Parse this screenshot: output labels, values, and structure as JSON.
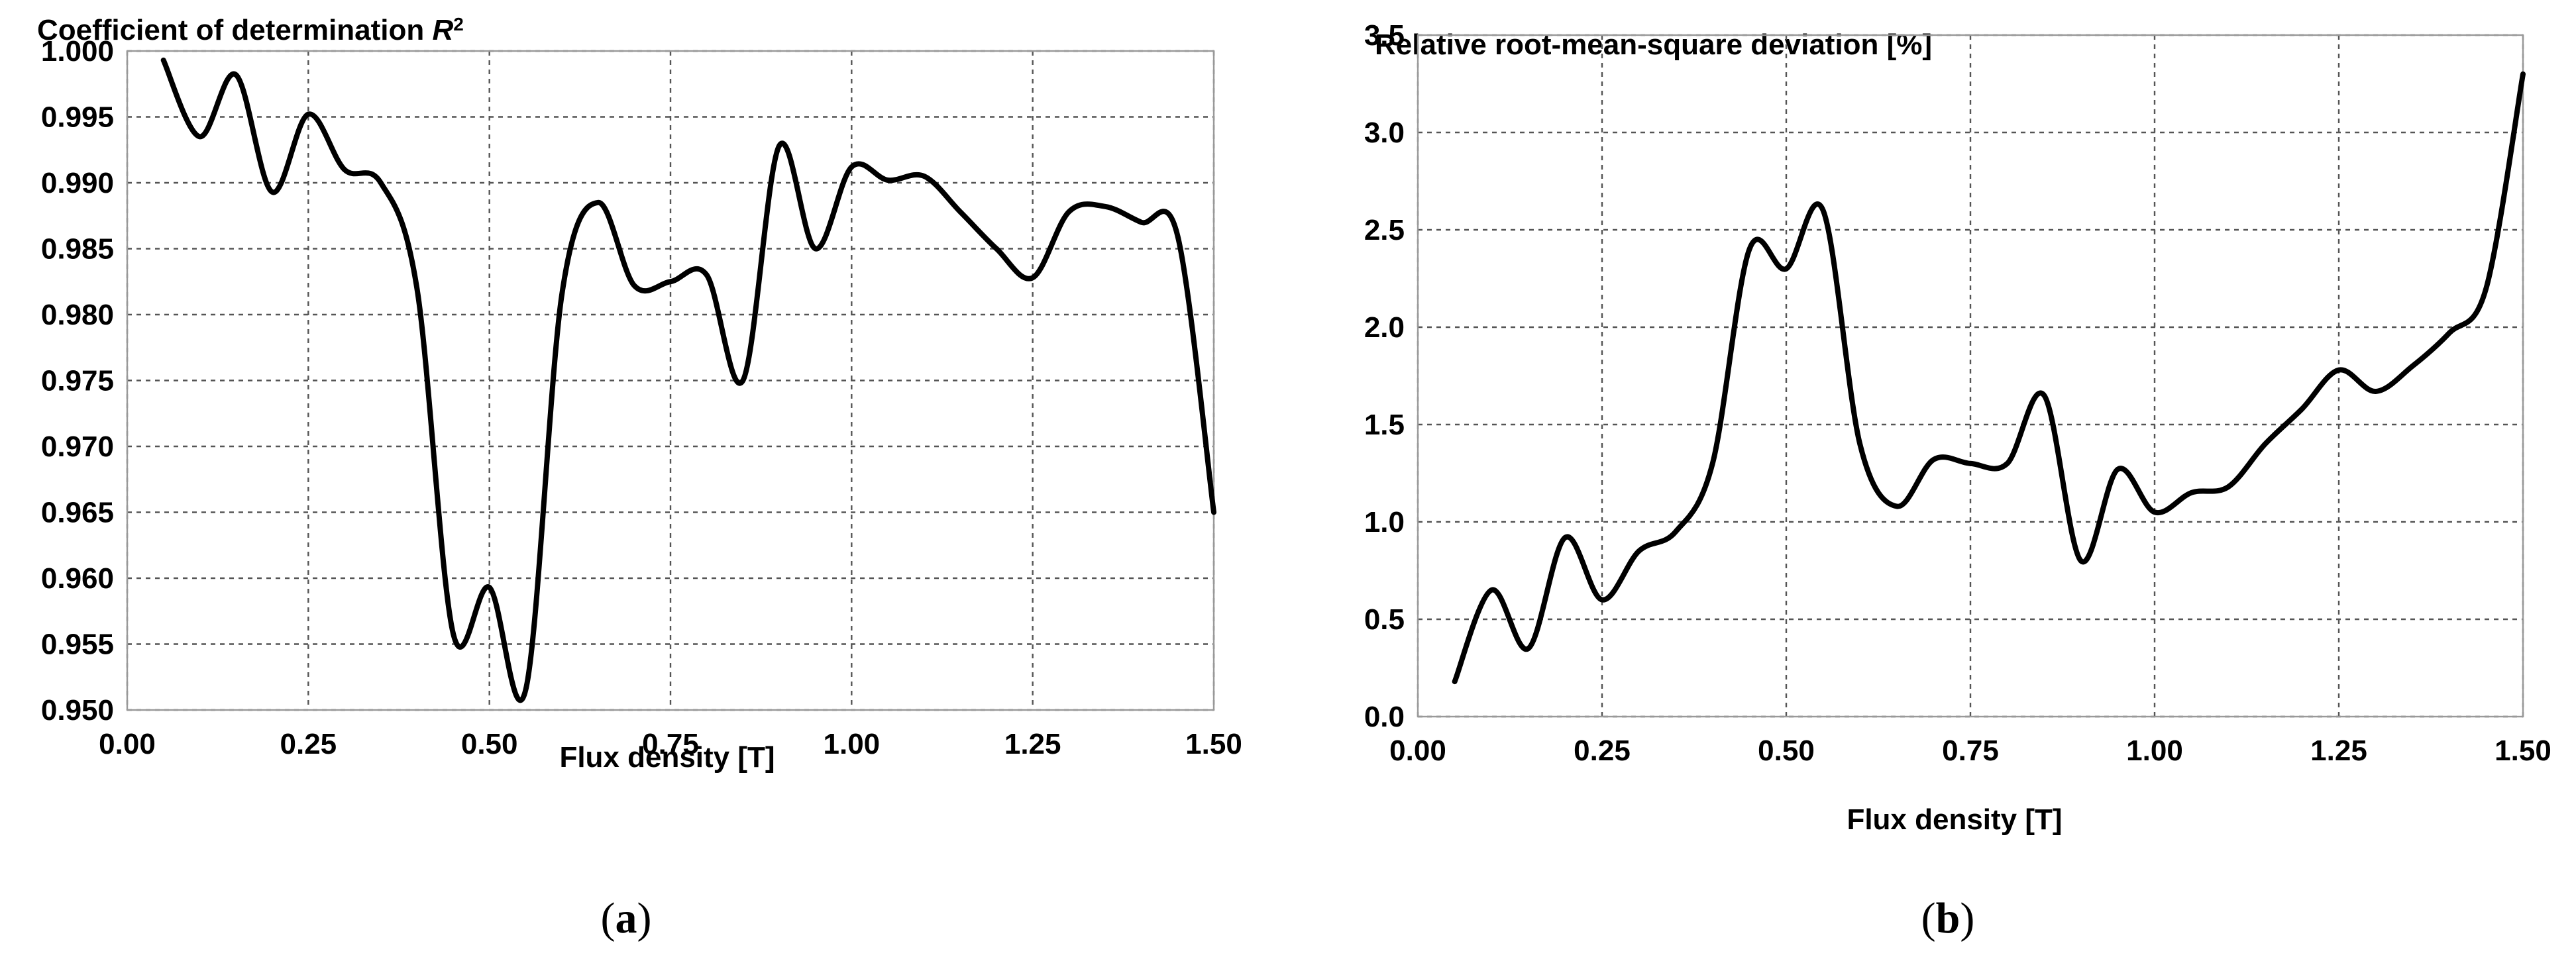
{
  "chart_data": [
    {
      "type": "line",
      "title_prefix": "Coefficient of determination ",
      "title_var": "R",
      "title_sup": "2",
      "xlabel": "Flux density [T]",
      "ylabel": "",
      "xlim": [
        0,
        1.5
      ],
      "ylim": [
        0.95,
        1.0
      ],
      "x_ticks": [
        "0.00",
        "0.25",
        "0.50",
        "0.75",
        "1.00",
        "1.25",
        "1.50"
      ],
      "y_ticks": [
        "0.950",
        "0.955",
        "0.960",
        "0.965",
        "0.970",
        "0.975",
        "0.980",
        "0.985",
        "0.990",
        "0.995",
        "1.000"
      ],
      "grid": true,
      "panel_label": "a",
      "series": [
        {
          "x": [
            0.05,
            0.1,
            0.15,
            0.2,
            0.25,
            0.3,
            0.35,
            0.4,
            0.45,
            0.5,
            0.55,
            0.6,
            0.65,
            0.7,
            0.75,
            0.8,
            0.85,
            0.9,
            0.95,
            1.0,
            1.05,
            1.1,
            1.15,
            1.2,
            1.25,
            1.3,
            1.35,
            1.4,
            1.45,
            1.5
          ],
          "y": [
            0.9993,
            0.9935,
            0.9982,
            0.9893,
            0.9952,
            0.991,
            0.99,
            0.982,
            0.9558,
            0.9593,
            0.9515,
            0.9815,
            0.9885,
            0.9822,
            0.9825,
            0.983,
            0.975,
            0.9928,
            0.985,
            0.9912,
            0.9902,
            0.9905,
            0.9878,
            0.985,
            0.9828,
            0.9878,
            0.9882,
            0.987,
            0.986,
            0.965
          ]
        }
      ]
    },
    {
      "type": "line",
      "title": "Relative root-mean-square deviation [%]",
      "xlabel": "Flux density [T]",
      "ylabel": "",
      "xlim": [
        0,
        1.5
      ],
      "ylim": [
        0,
        3.5
      ],
      "x_ticks": [
        "0.00",
        "0.25",
        "0.50",
        "0.75",
        "1.00",
        "1.25",
        "1.50"
      ],
      "y_ticks": [
        "0.0",
        "0.5",
        "1.0",
        "1.5",
        "2.0",
        "2.5",
        "3.0",
        "3.5"
      ],
      "grid": true,
      "panel_label": "b",
      "series": [
        {
          "x": [
            0.05,
            0.1,
            0.15,
            0.2,
            0.25,
            0.3,
            0.35,
            0.4,
            0.45,
            0.5,
            0.55,
            0.6,
            0.65,
            0.7,
            0.75,
            0.8,
            0.85,
            0.9,
            0.95,
            1.0,
            1.05,
            1.1,
            1.15,
            1.2,
            1.25,
            1.3,
            1.35,
            1.4,
            1.45,
            1.5
          ],
          "y": [
            0.18,
            0.65,
            0.35,
            0.92,
            0.6,
            0.85,
            0.95,
            1.3,
            2.4,
            2.3,
            2.6,
            1.4,
            1.08,
            1.32,
            1.3,
            1.3,
            1.65,
            0.8,
            1.27,
            1.05,
            1.15,
            1.18,
            1.4,
            1.58,
            1.78,
            1.67,
            1.8,
            1.97,
            2.2,
            3.3
          ]
        }
      ]
    }
  ]
}
